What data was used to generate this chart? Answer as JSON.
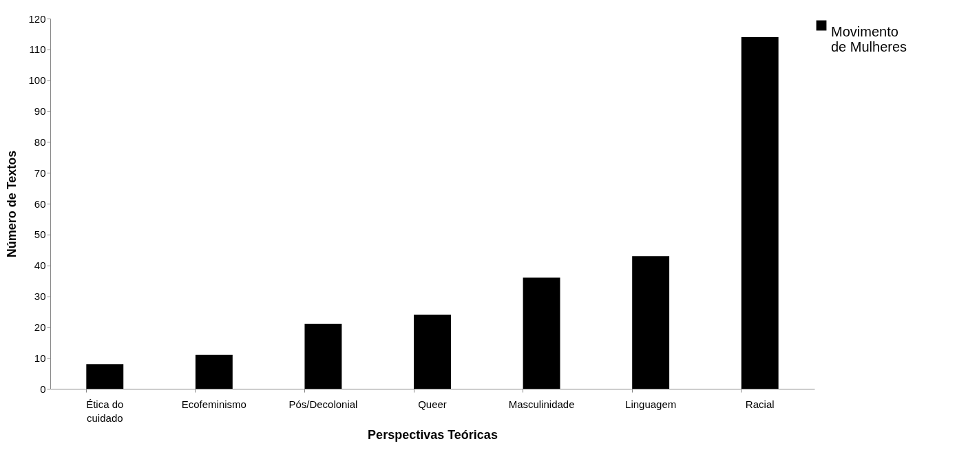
{
  "chart_data": {
    "type": "bar",
    "xlabel": "Perspectivas Teóricas",
    "ylabel": "Número de Textos",
    "categories": [
      "Ética do cuidado",
      "Ecofeminismo",
      "Pós/Decolonial",
      "Queer",
      "Masculinidade",
      "Linguagem",
      "Racial"
    ],
    "series": [
      {
        "name": "Movimento de Mulheres",
        "color": "#000000",
        "values": [
          8,
          11,
          21,
          24,
          36,
          43,
          114
        ]
      }
    ],
    "ylim": [
      0,
      120
    ],
    "yticks": [
      0,
      10,
      20,
      30,
      40,
      50,
      60,
      70,
      80,
      90,
      100,
      110,
      120
    ],
    "grid": false,
    "legend": "right"
  }
}
